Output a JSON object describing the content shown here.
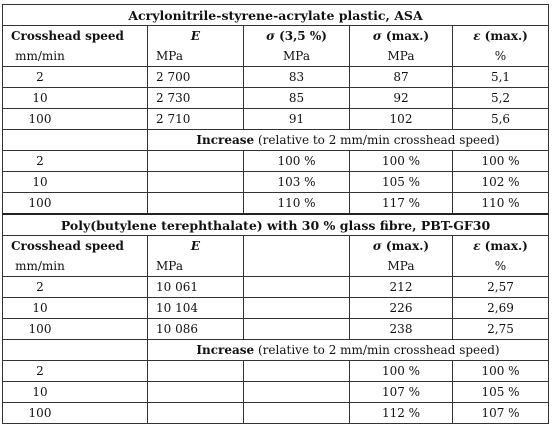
{
  "table1": {
    "title": "Acrylonitrile-styrene-acrylate plastic, ASA",
    "headers": [
      "Crosshead speed",
      "E",
      "σ (3,5 %)",
      "σ (max.)",
      "ε (max.)"
    ],
    "units": [
      "mm/min",
      "MPa",
      "MPa",
      "MPa",
      "%"
    ],
    "rows": [
      [
        "2",
        "2 700",
        "83",
        "87",
        "5,1"
      ],
      [
        "10",
        "2 730",
        "85",
        "92",
        "5,2"
      ],
      [
        "100",
        "2 710",
        "91",
        "102",
        "5,6"
      ]
    ],
    "increase_label_bold": "Increase",
    "increase_label_rest": " (relative to 2 mm/min crosshead speed)",
    "increase_rows": [
      [
        "2",
        "",
        "100 %",
        "100 %",
        "100 %"
      ],
      [
        "10",
        "",
        "103 %",
        "105 %",
        "102 %"
      ],
      [
        "100",
        "",
        "110 %",
        "117 %",
        "110 %"
      ]
    ]
  },
  "table2": {
    "title": "Poly(butylene terephthalate) with 30 % glass fibre, PBT-GF30",
    "headers": [
      "Crosshead speed",
      "E",
      "",
      "σ (max.)",
      "ε (max.)"
    ],
    "units": [
      "mm/min",
      "MPa",
      "",
      "MPa",
      "%"
    ],
    "rows": [
      [
        "2",
        "10 061",
        "",
        "212",
        "2,57"
      ],
      [
        "10",
        "10 104",
        "",
        "226",
        "2,69"
      ],
      [
        "100",
        "10 086",
        "",
        "238",
        "2,75"
      ]
    ],
    "increase_label_bold": "Increase",
    "increase_label_rest": " (relative to 2 mm/min crosshead speed)",
    "increase_rows": [
      [
        "2",
        "",
        "",
        "100 %",
        "100 %"
      ],
      [
        "10",
        "",
        "",
        "107 %",
        "105 %"
      ],
      [
        "100",
        "",
        "",
        "112 %",
        "107 %"
      ]
    ]
  }
}
